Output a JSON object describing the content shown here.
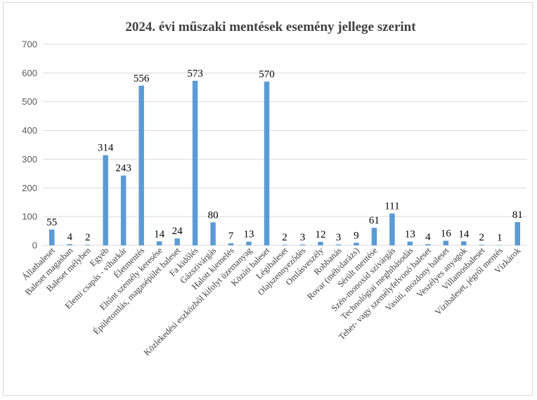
{
  "chart_data": {
    "type": "bar",
    "title": "2024. évi műszaki mentések esemény jellege szerint",
    "ylim": [
      0,
      700
    ],
    "yticks": [
      0,
      100,
      200,
      300,
      400,
      500,
      600,
      700
    ],
    "grid": true,
    "bar_color": "#5b9bd5",
    "categories": [
      "Állatbaleset",
      "Baleset magasban",
      "Baleset mélyben",
      "Egyéb",
      "Elemi csapás - viharkár",
      "Életmentés",
      "Eltűnt személy keresése",
      "Épületomlás, magasépület baleset",
      "Fa kidőlés",
      "Gázszivárgás",
      "Halott kiemelés",
      "Közlekedési eszközből kifolyt üzemanyag",
      "Közúti baleset",
      "Légibaleset",
      "Olajszennyeződés",
      "Omlásveszély",
      "Robbanás",
      "Rovar (méh/darázs)",
      "Sérült mentése",
      "Szén-monoxid szivárgás",
      "Technológiai meghibásodás",
      "Teher- vagy személyfelvonó baleset",
      "Vasúti, mozdony baleset",
      "Veszélyes anyagok",
      "Villamosbaleset",
      "Vízibaleset, jégről mentés",
      "Vízkárok"
    ],
    "values": [
      55,
      4,
      2,
      314,
      243,
      556,
      14,
      24,
      573,
      80,
      7,
      13,
      570,
      2,
      3,
      12,
      3,
      9,
      61,
      111,
      13,
      4,
      16,
      14,
      2,
      1,
      81
    ]
  }
}
